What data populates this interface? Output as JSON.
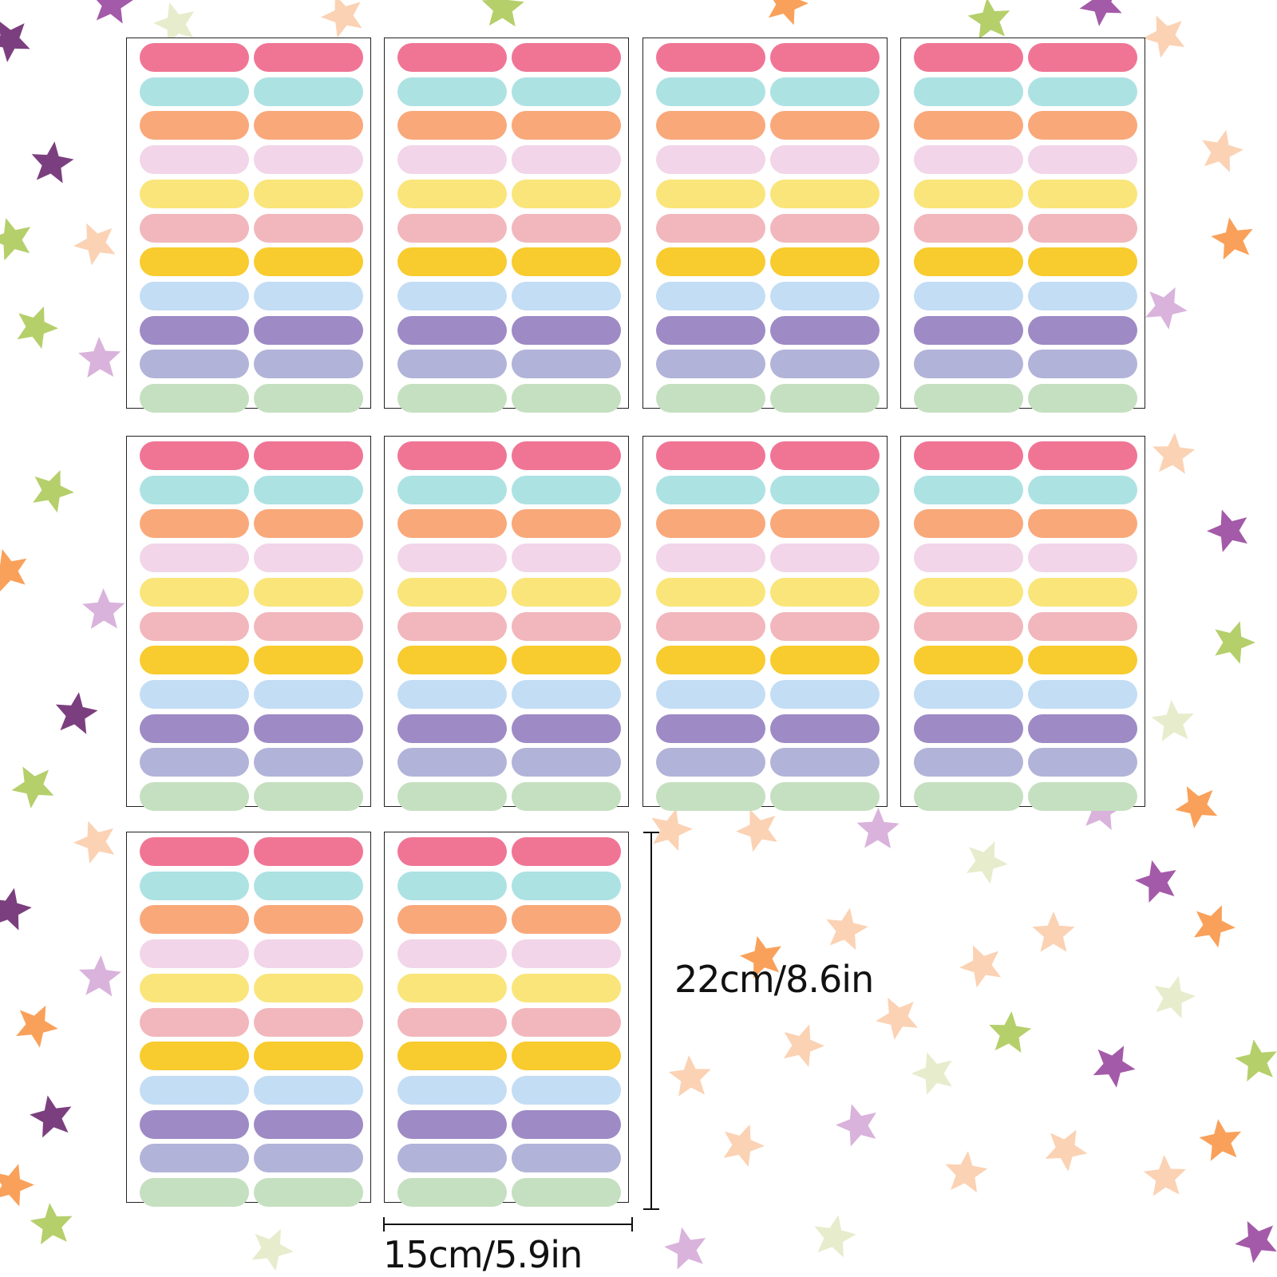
{
  "product": {
    "sheet_count": 10,
    "label_colors": [
      "#f07595",
      "#ade2e3",
      "#f9a87a",
      "#f2d5e9",
      "#f9e57a",
      "#f1b7bc",
      "#f8cb2e",
      "#c3ddf5",
      "#9e8ac5",
      "#b2b3d9",
      "#c5e0c0"
    ],
    "background_star_colors": [
      "#7b3f7f",
      "#b5cf6b",
      "#f9a15a",
      "#fbd2b4",
      "#d9b3dc",
      "#a35aa8",
      "#e7eccc"
    ]
  },
  "dimensions": {
    "height_label": "22cm/8.6in",
    "width_label": "15cm/5.9in"
  }
}
